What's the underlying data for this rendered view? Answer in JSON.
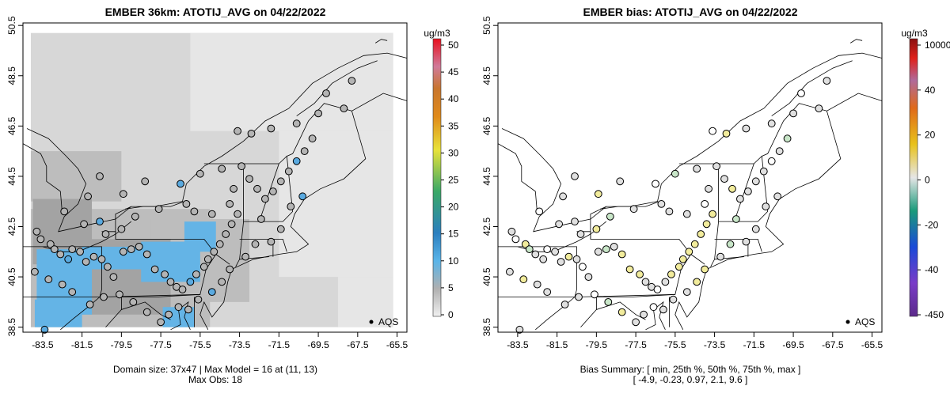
{
  "left_panel": {
    "title": "EMBER 36km: ATOTIJ_AVG on 04/22/2022",
    "colorbar_unit": "ug/m3",
    "colorbar_ticks": [
      "50",
      "45",
      "40",
      "35",
      "30",
      "25",
      "20",
      "15",
      "10",
      "5",
      "0"
    ],
    "footer_line1": "Domain size: 37x47 | Max Model = 16 at (11, 13)",
    "footer_line2": "Max Obs: 18",
    "legend_label": "AQS"
  },
  "right_panel": {
    "title": "EMBER bias: ATOTIJ_AVG on 04/22/2022",
    "colorbar_unit": "ug/m3",
    "colorbar_ticks": [
      "10000",
      "40",
      "20",
      "0",
      "-20",
      "-40",
      "-450"
    ],
    "footer_line1": "Bias Summary: [ min, 25th %, 50th %, 75th %, max ]",
    "footer_line2": "[ -4.9,   -0.23,   0.97,   2.1,   9.6 ]",
    "legend_label": "AQS"
  },
  "axes": {
    "x_ticks": [
      "-83.5",
      "-81.5",
      "-79.5",
      "-77.5",
      "-75.5",
      "-73.5",
      "-71.5",
      "-69.5",
      "-67.5",
      "-65.5"
    ],
    "y_ticks": [
      "50.5",
      "48.5",
      "46.5",
      "44.5",
      "42.5",
      "40.5",
      "38.5"
    ],
    "x_range": [
      -84.5,
      -65.0
    ],
    "y_range": [
      38.3,
      50.6
    ]
  },
  "colors": {
    "model_background": "#d7d7d7",
    "model_light": "#e6e6e6",
    "model_mid": "#bdbdbd",
    "model_dark": "#a3a3a3",
    "model_blue": "#64b4e6",
    "obs_fill": "#b4b4b4",
    "obs_high_fill": "#5aaae0",
    "bias_neutral": "#e0e0e0",
    "bias_pos": "#f2ec9c",
    "bias_neg": "#c8e6c8",
    "map_line": "#000000"
  },
  "chart_data": [
    {
      "type": "scatter",
      "title": "EMBER 36km: ATOTIJ_AVG on 04/22/2022",
      "xlabel": "",
      "ylabel": "",
      "xlim": [
        -84.5,
        -65.0
      ],
      "ylim": [
        38.3,
        50.6
      ],
      "legend": "bottom-right",
      "colorbar_range": [
        0,
        50
      ],
      "points": [
        [
          -83.8,
          42.3
        ],
        [
          -83.6,
          42.0
        ],
        [
          -83.1,
          41.8
        ],
        [
          -82.9,
          41.6
        ],
        [
          -82.6,
          41.4
        ],
        [
          -82.2,
          41.2
        ],
        [
          -82.0,
          41.6
        ],
        [
          -81.6,
          41.5
        ],
        [
          -81.3,
          41.1
        ],
        [
          -80.9,
          41.3
        ],
        [
          -80.5,
          41.2
        ],
        [
          -80.2,
          40.9
        ],
        [
          -79.9,
          40.5
        ],
        [
          -79.4,
          41.5
        ],
        [
          -79.0,
          41.6
        ],
        [
          -78.6,
          41.7
        ],
        [
          -78.2,
          41.4
        ],
        [
          -77.8,
          40.8
        ],
        [
          -77.3,
          40.6
        ],
        [
          -77.0,
          40.3
        ],
        [
          -76.7,
          40.1
        ],
        [
          -76.4,
          40.0
        ],
        [
          -76.0,
          40.3
        ],
        [
          -75.7,
          40.6
        ],
        [
          -75.3,
          40.9
        ],
        [
          -75.1,
          41.2
        ],
        [
          -74.8,
          41.5
        ],
        [
          -74.5,
          41.8
        ],
        [
          -74.2,
          42.2
        ],
        [
          -73.9,
          42.6
        ],
        [
          -73.6,
          43.0
        ],
        [
          -74.0,
          43.4
        ],
        [
          -74.9,
          43.0
        ],
        [
          -75.8,
          43.1
        ],
        [
          -76.2,
          43.4
        ],
        [
          -77.6,
          43.2
        ],
        [
          -78.8,
          42.9
        ],
        [
          -79.5,
          42.4
        ],
        [
          -80.3,
          42.2
        ],
        [
          -80.6,
          42.7
        ],
        [
          -81.4,
          42.6
        ],
        [
          -82.4,
          43.1
        ],
        [
          -81.2,
          43.7
        ],
        [
          -80.6,
          44.5
        ],
        [
          -79.4,
          43.8
        ],
        [
          -78.3,
          44.3
        ],
        [
          -76.5,
          44.2
        ],
        [
          -75.5,
          44.6
        ],
        [
          -74.4,
          44.8
        ],
        [
          -73.4,
          44.9
        ],
        [
          -73.0,
          44.4
        ],
        [
          -72.6,
          44.0
        ],
        [
          -72.2,
          43.6
        ],
        [
          -71.8,
          43.9
        ],
        [
          -71.4,
          44.3
        ],
        [
          -71.0,
          44.7
        ],
        [
          -70.6,
          45.1
        ],
        [
          -70.2,
          45.5
        ],
        [
          -69.8,
          46.0
        ],
        [
          -69.5,
          47.0
        ],
        [
          -68.2,
          47.2
        ],
        [
          -69.1,
          47.8
        ],
        [
          -67.8,
          48.3
        ],
        [
          -70.6,
          46.6
        ],
        [
          -71.9,
          46.4
        ],
        [
          -72.9,
          46.2
        ],
        [
          -73.6,
          46.3
        ],
        [
          -71.4,
          42.4
        ],
        [
          -71.9,
          41.9
        ],
        [
          -72.7,
          41.8
        ],
        [
          -73.2,
          41.3
        ],
        [
          -74.0,
          40.8
        ],
        [
          -74.4,
          40.3
        ],
        [
          -74.9,
          39.9
        ],
        [
          -75.6,
          39.6
        ],
        [
          -76.1,
          39.2
        ],
        [
          -76.6,
          39.3
        ],
        [
          -77.1,
          39.0
        ],
        [
          -77.5,
          38.7
        ],
        [
          -78.2,
          39.1
        ],
        [
          -78.9,
          39.5
        ],
        [
          -79.6,
          39.8
        ],
        [
          -80.4,
          39.7
        ],
        [
          -81.1,
          39.4
        ],
        [
          -82.0,
          39.9
        ],
        [
          -82.5,
          40.2
        ],
        [
          -83.2,
          40.4
        ],
        [
          -83.9,
          40.7
        ],
        [
          -83.4,
          38.4
        ],
        [
          -70.9,
          43.3
        ],
        [
          -70.3,
          43.7
        ],
        [
          -72.4,
          42.8
        ],
        [
          -73.8,
          44.0
        ]
      ]
    },
    {
      "type": "scatter",
      "title": "EMBER bias: ATOTIJ_AVG on 04/22/2022",
      "xlabel": "",
      "ylabel": "",
      "xlim": [
        -84.5,
        -65.0
      ],
      "ylim": [
        38.3,
        50.6
      ],
      "legend": "bottom-right",
      "bias_summary": {
        "min": -4.9,
        "p25": -0.23,
        "p50": 0.97,
        "p75": 2.1,
        "max": 9.6
      }
    }
  ]
}
